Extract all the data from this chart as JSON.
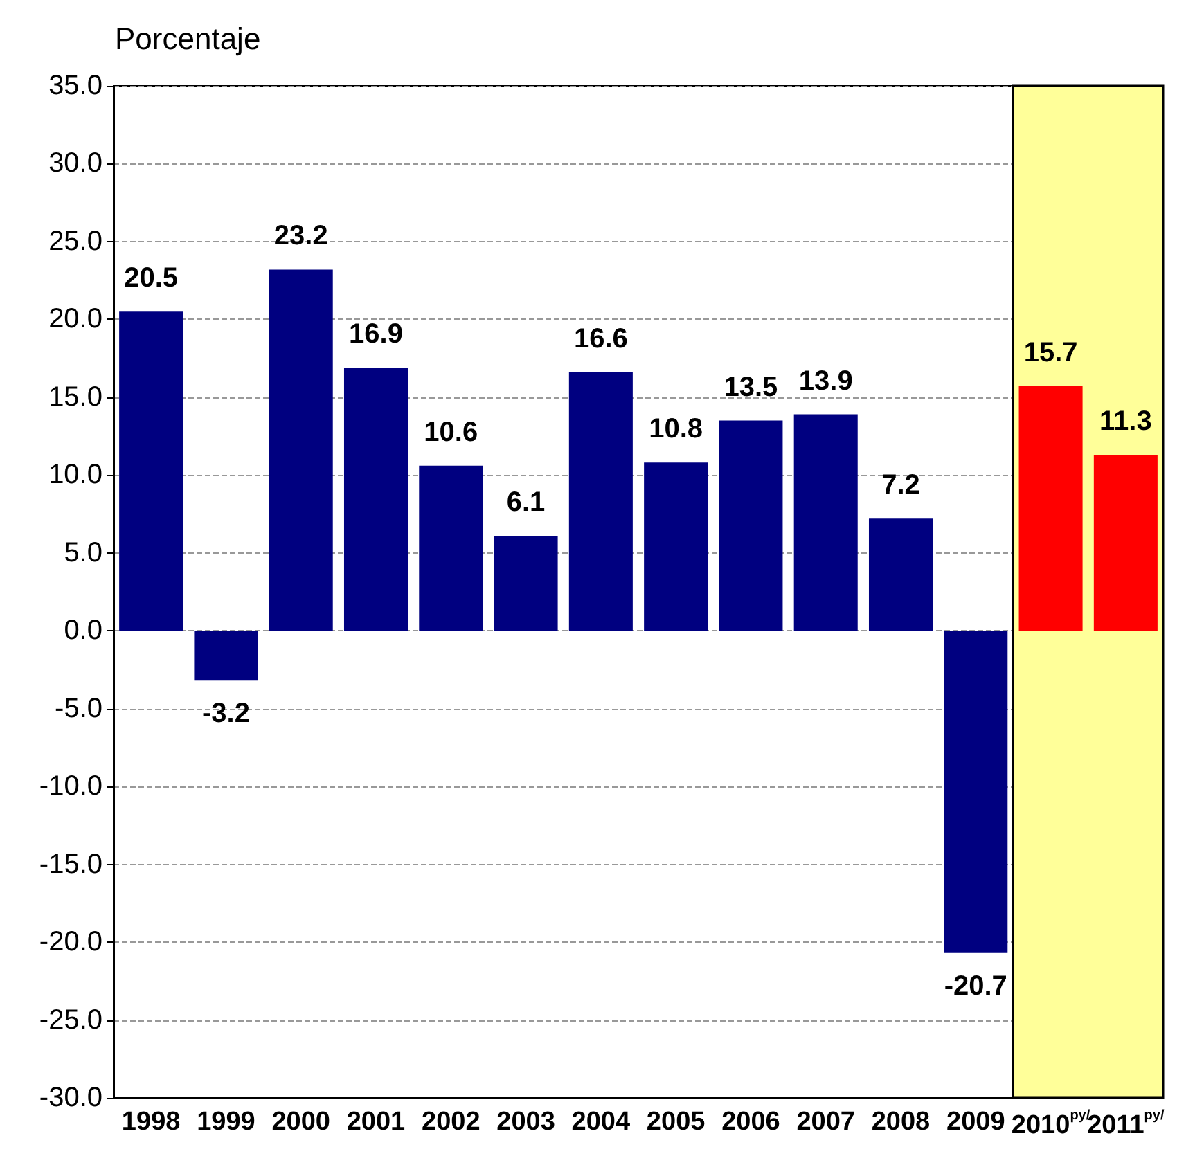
{
  "chart_data": {
    "type": "bar",
    "ylabel": "Porcentaje",
    "categories": [
      "1998",
      "1999",
      "2000",
      "2001",
      "2002",
      "2003",
      "2004",
      "2005",
      "2006",
      "2007",
      "2008",
      "2009",
      "2010$^{py/}$",
      "2011$^{py/}$"
    ],
    "values": [
      20.5,
      -3.2,
      23.2,
      16.9,
      10.6,
      6.1,
      16.6,
      10.8,
      13.5,
      13.9,
      7.2,
      -20.7,
      15.7,
      11.3
    ],
    "colors": [
      "#000080",
      "#000080",
      "#000080",
      "#000080",
      "#000080",
      "#000080",
      "#000080",
      "#000080",
      "#000080",
      "#000080",
      "#000080",
      "#000080",
      "#ff0000",
      "#ff0000"
    ],
    "ylim": [
      -30,
      35
    ],
    "yticks": [
      {
        "value": -30,
        "label": "-30.0"
      },
      {
        "value": -25,
        "label": "-25.0"
      },
      {
        "value": -20,
        "label": "-20.0"
      },
      {
        "value": -15,
        "label": "-15.0"
      },
      {
        "value": -10,
        "label": "-10.0"
      },
      {
        "value": -5,
        "label": "-5.0"
      },
      {
        "value": 0,
        "label": "0.0"
      },
      {
        "value": 5,
        "label": "5.0"
      },
      {
        "value": 10,
        "label": "10.0"
      },
      {
        "value": 15,
        "label": "15.0"
      },
      {
        "value": 20,
        "label": "20.0"
      },
      {
        "value": 25,
        "label": "25.0"
      },
      {
        "value": 30,
        "label": "30.0"
      },
      {
        "value": 35,
        "label": "35.0"
      }
    ],
    "bands": [
      {
        "axis": "x",
        "from": "2010$^{py/}$",
        "to": "2011$^{py/}$",
        "color": "#ffff99"
      }
    ],
    "grid": "y",
    "data_labels": true
  }
}
